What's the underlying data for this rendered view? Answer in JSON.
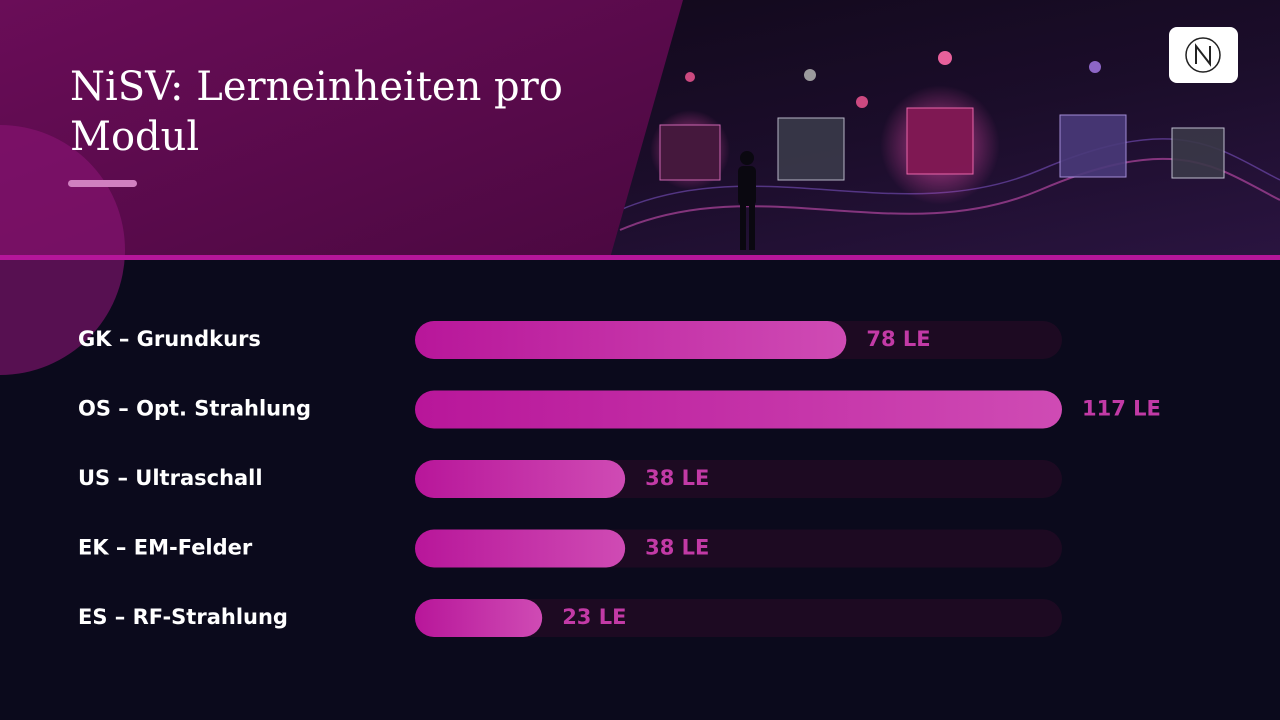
{
  "chart_data": {
    "type": "bar",
    "orientation": "horizontal",
    "title": "NiSV: Lerneinheiten pro Modul",
    "categories": [
      "GK – Grundkurs",
      "OS – Opt. Strahlung",
      "US – Ultraschall",
      "EK – EM-Felder",
      "ES – RF-Strahlung"
    ],
    "values": [
      78,
      117,
      38,
      38,
      23
    ],
    "value_labels": [
      "78 LE",
      "117 LE",
      "38 LE",
      "38 LE",
      "23 LE"
    ],
    "xlim": [
      0,
      117
    ],
    "color": "#c0259f"
  }
}
